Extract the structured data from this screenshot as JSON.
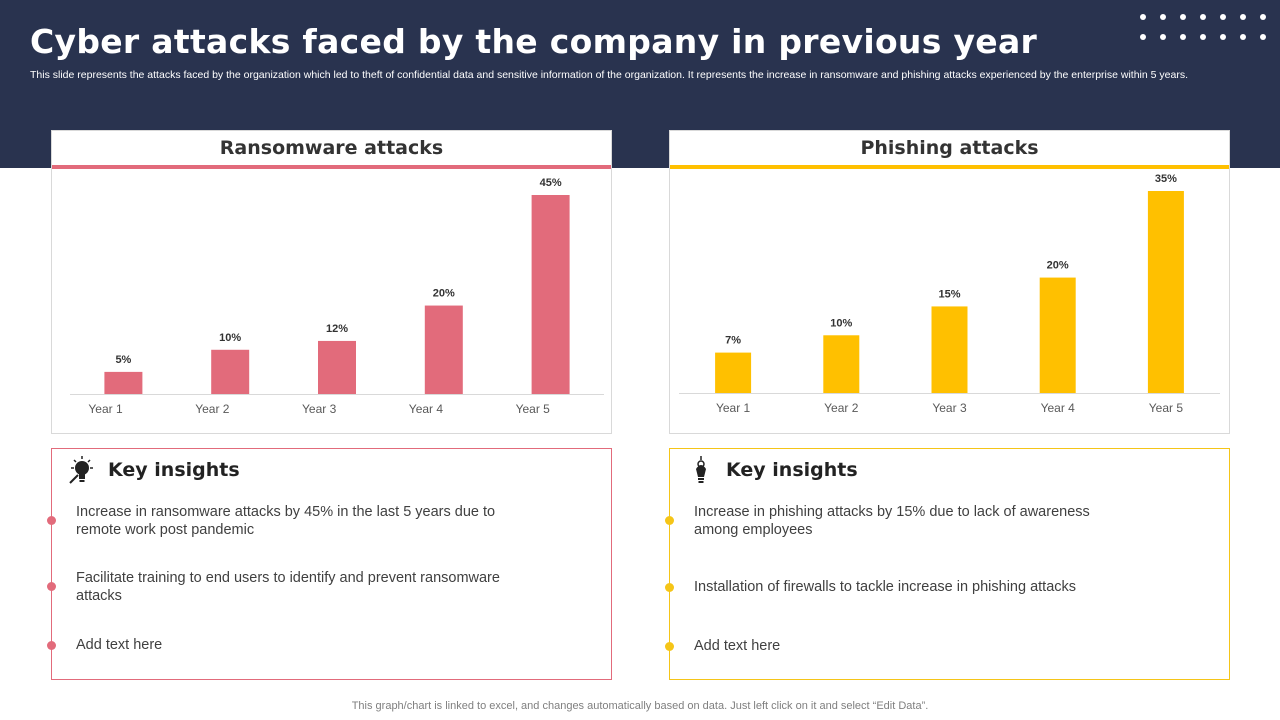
{
  "header": {
    "title": "Cyber attacks faced by the company in previous year",
    "subtitle": "This slide represents the attacks faced by the organization which led to theft of confidential data and sensitive information of the organization. It represents the increase in ransomware and phishing attacks experienced by the enterprise within 5 years."
  },
  "colors": {
    "header_bg": "#29334f",
    "ransomware": "#e26b7b",
    "phishing": "#ffc000"
  },
  "chart_data": [
    {
      "type": "bar",
      "title": "Ransomware attacks",
      "categories": [
        "Year 1",
        "Year 2",
        "Year 3",
        "Year 4",
        "Year 5"
      ],
      "values": [
        5,
        10,
        12,
        20,
        45
      ],
      "labels": [
        "5%",
        "10%",
        "12%",
        "20%",
        "45%"
      ],
      "ylim": [
        0,
        45
      ],
      "grid": false,
      "color": "#e26b7b"
    },
    {
      "type": "bar",
      "title": "Phishing attacks",
      "categories": [
        "Year 1",
        "Year 2",
        "Year 3",
        "Year 4",
        "Year 5"
      ],
      "values": [
        7,
        10,
        15,
        20,
        35
      ],
      "labels": [
        "7%",
        "10%",
        "15%",
        "20%",
        "35%"
      ],
      "ylim": [
        0,
        35
      ],
      "grid": false,
      "color": "#ffc000"
    }
  ],
  "insights": [
    {
      "title": "Key insights",
      "icon": "lightbulb-icon",
      "bullets": [
        "Increase in ransomware attacks by 45% in the last 5 years due to remote work post pandemic",
        "Facilitate training to end users to identify and prevent ransomware attacks",
        "Add text here"
      ]
    },
    {
      "title": "Key insights",
      "icon": "lightbulb-icon",
      "bullets": [
        "Increase in phishing attacks by 15% due to lack of awareness among employees",
        "Installation of firewalls to tackle increase in phishing attacks",
        "Add text here"
      ]
    }
  ],
  "footer": "This graph/chart is linked to excel,  and changes automatically based on data. Just left click on it and select “Edit Data”."
}
